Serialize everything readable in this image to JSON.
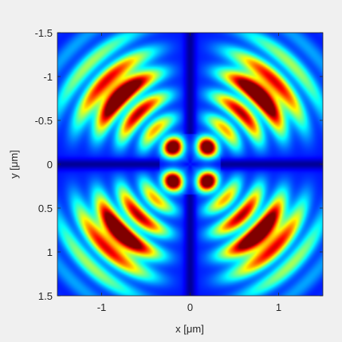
{
  "chart_data": {
    "type": "heatmap",
    "title": "",
    "xlabel": "x [μm]",
    "ylabel": "y [μm]",
    "xlim": [
      -1.5,
      1.5
    ],
    "ylim": [
      -1.5,
      1.5
    ],
    "y_axis_direction": "top-to-bottom increasing",
    "x_ticks": [
      -1,
      0,
      1
    ],
    "x_tick_labels": [
      "-1",
      "0",
      "1"
    ],
    "y_ticks": [
      -1.5,
      -1,
      -0.5,
      0,
      0.5,
      1,
      1.5
    ],
    "y_tick_labels": [
      "-1.5",
      "-1",
      "-0.5",
      "0",
      "0.5",
      "1",
      "1.5"
    ],
    "colormap": "jet",
    "grid": false,
    "colorbar": false,
    "features": [
      {
        "name": "central peaks",
        "count": 4,
        "x": [
          -0.19,
          0.19
        ],
        "y": [
          -0.19,
          0.19
        ],
        "intensity": 1.0
      },
      {
        "name": "outer diagonal lobes",
        "count": 4,
        "center_radius": 1.15,
        "intensity": 0.85
      }
    ]
  },
  "colors": {
    "background": "#f0f0f0",
    "axis": "#262626"
  }
}
